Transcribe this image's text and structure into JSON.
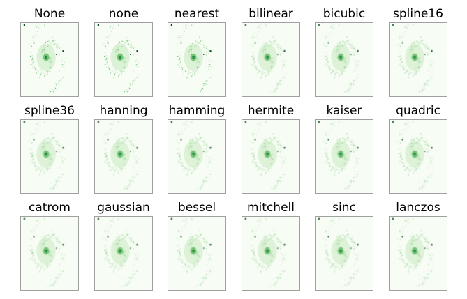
{
  "figure": {
    "panels": [
      {
        "title": "None"
      },
      {
        "title": "none"
      },
      {
        "title": "nearest"
      },
      {
        "title": "bilinear"
      },
      {
        "title": "bicubic"
      },
      {
        "title": "spline16"
      },
      {
        "title": "spline36"
      },
      {
        "title": "hanning"
      },
      {
        "title": "hamming"
      },
      {
        "title": "hermite"
      },
      {
        "title": "kaiser"
      },
      {
        "title": "quadric"
      },
      {
        "title": "catrom"
      },
      {
        "title": "gaussian"
      },
      {
        "title": "bessel"
      },
      {
        "title": "mitchell"
      },
      {
        "title": "sinc"
      },
      {
        "title": "lanczos"
      }
    ],
    "colors": {
      "background": "#f7fcf5",
      "light": "#c7e9c0",
      "mid": "#74c476",
      "dark": "#00441b",
      "frame": "#a0a0a0"
    }
  }
}
